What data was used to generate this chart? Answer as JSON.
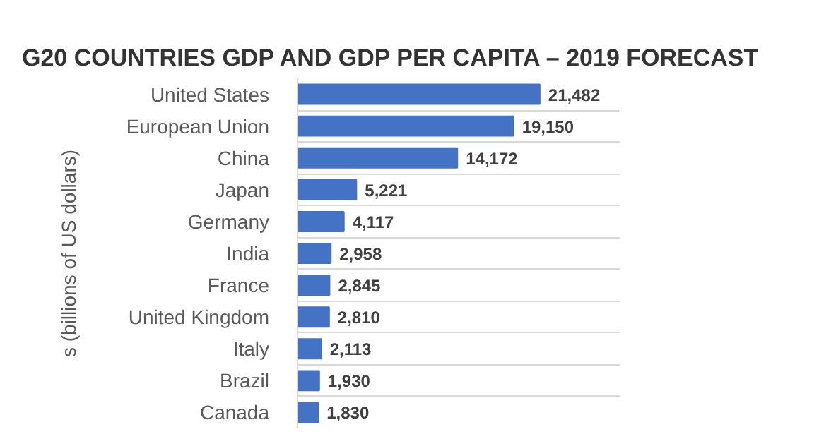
{
  "chart_data": {
    "type": "bar",
    "orientation": "horizontal",
    "title": "G20 COUNTRIES GDP AND GDP PER CAPITA – 2019 FORECAST",
    "ylabel": "s (billions of US dollars)",
    "categories": [
      "United States",
      "European Union",
      "China",
      "Japan",
      "Germany",
      "India",
      "France",
      "United Kingdom",
      "Italy",
      "Brazil",
      "Canada"
    ],
    "values": [
      21482,
      19150,
      14172,
      5221,
      4117,
      2958,
      2845,
      2810,
      2113,
      1930,
      1830
    ],
    "value_labels": [
      "21,482",
      "19,150",
      "14,172",
      "5,221",
      "4,117",
      "2,958",
      "2,845",
      "2,810",
      "2,113",
      "1,930",
      "1,830"
    ],
    "color": "#4472c4",
    "grid": "y"
  }
}
